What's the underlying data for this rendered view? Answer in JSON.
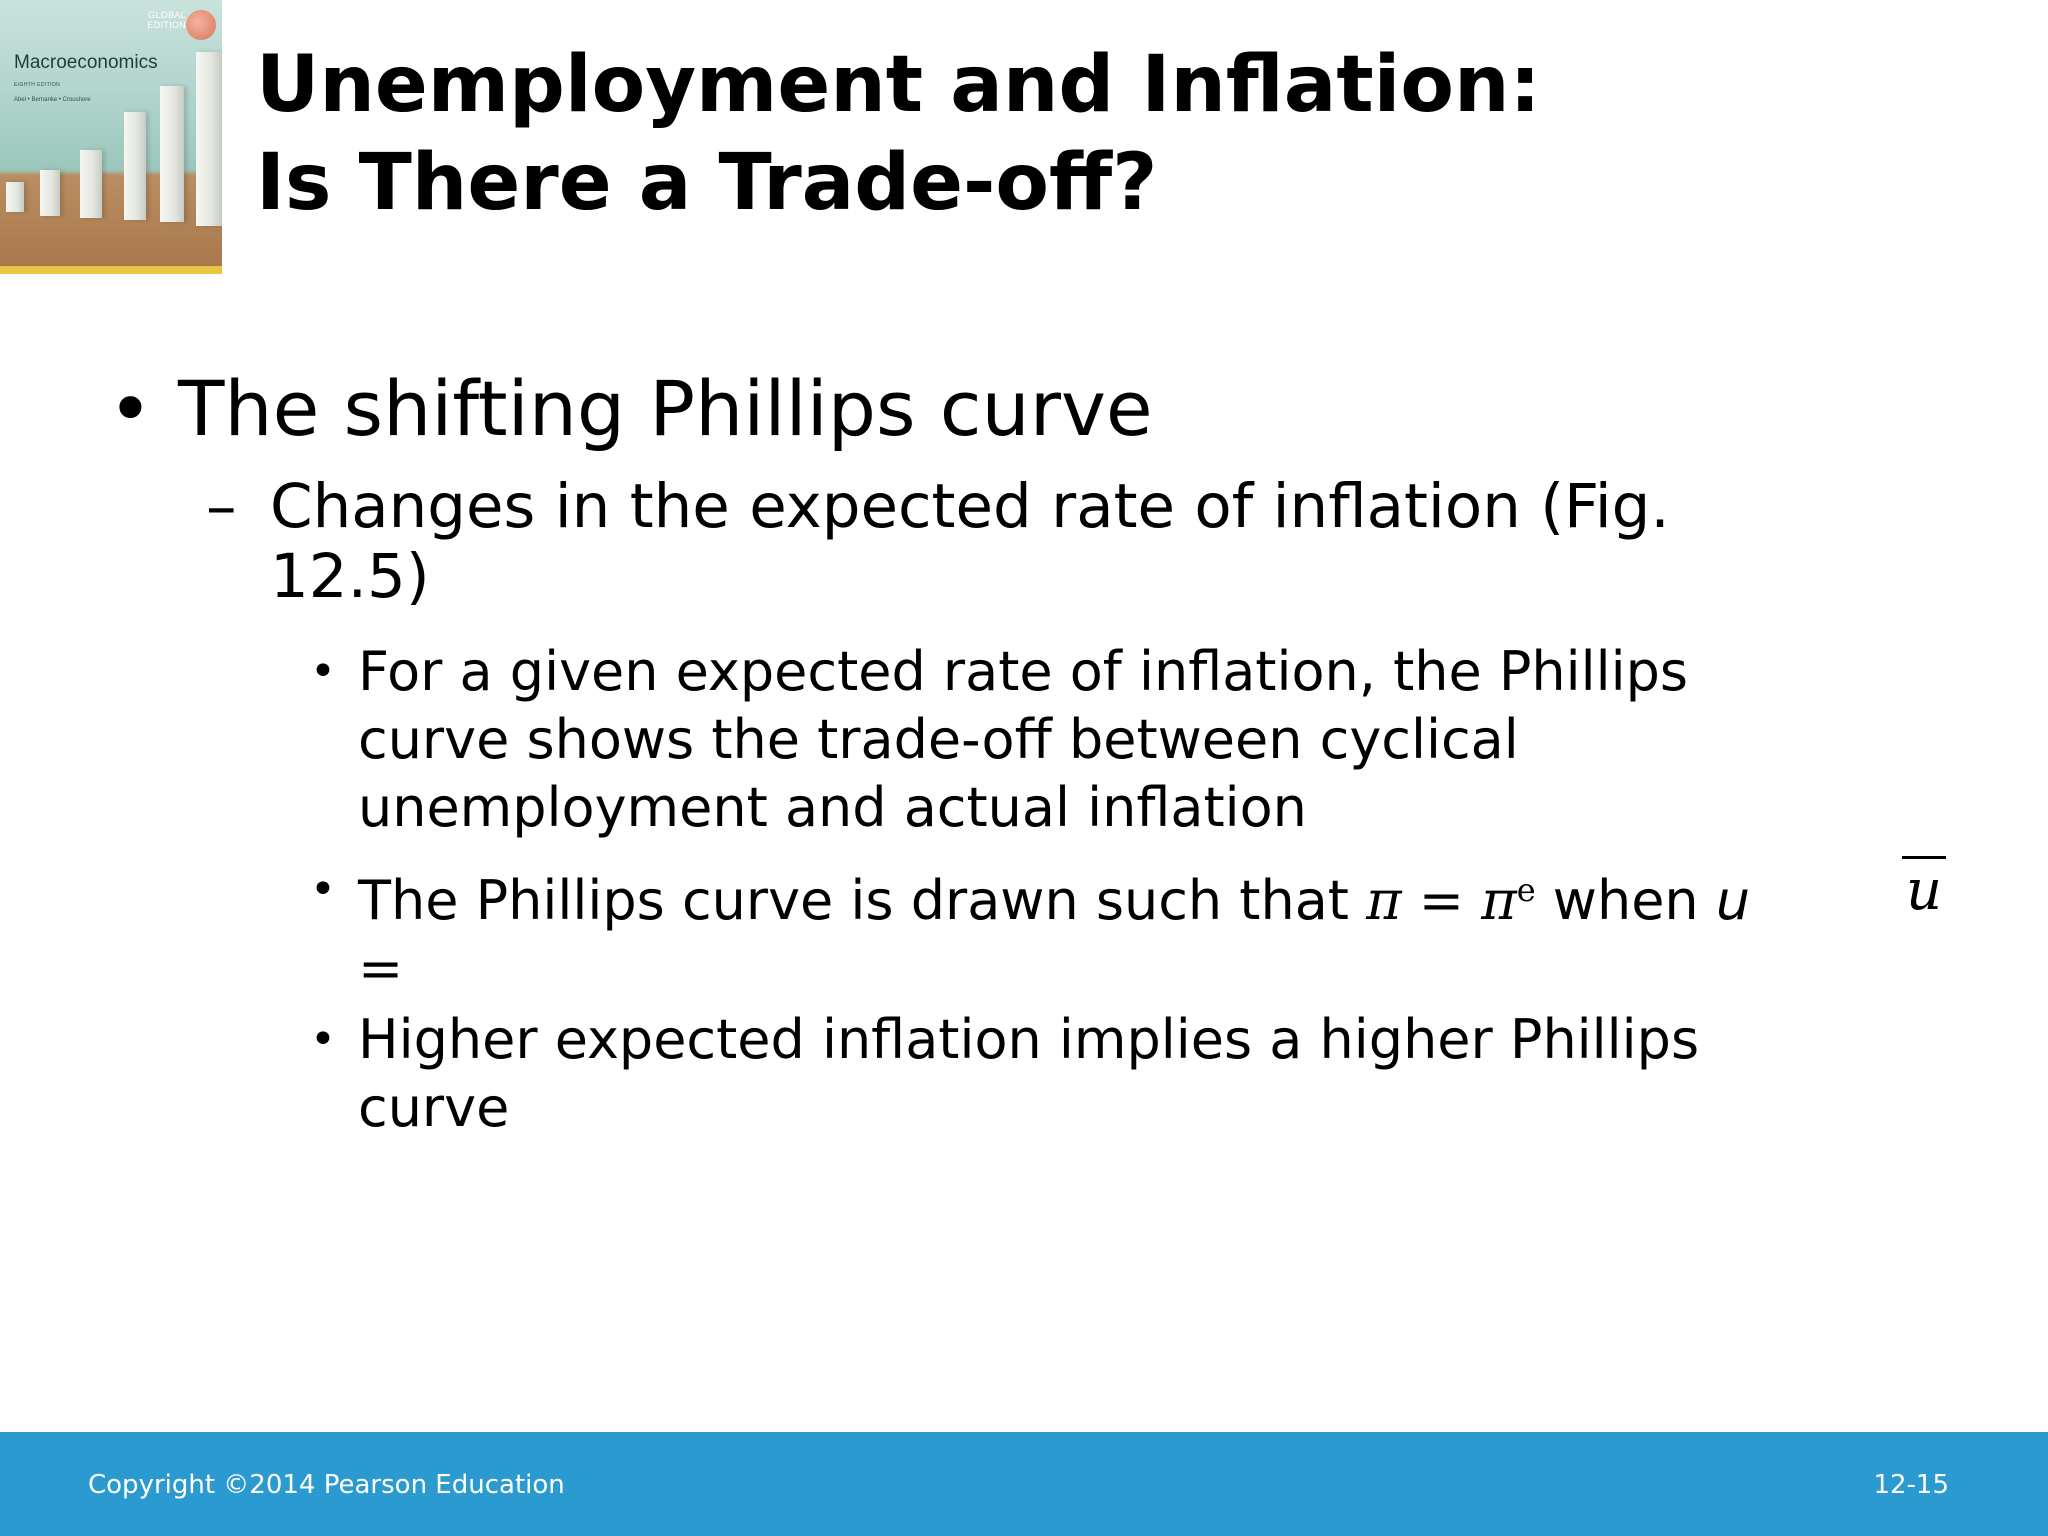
{
  "cover": {
    "badge_text": "GLOBAL\nEDITION",
    "book_title": "Macroeconomics",
    "edition": "EIGHTH EDITION",
    "authors": "Abel • Bernanke • Croushore"
  },
  "title": {
    "line1": "Unemployment and Inflation:",
    "line2": "Is There a Trade-off?"
  },
  "content": {
    "level1_marker": "•",
    "level1": "The shifting Phillips curve",
    "level2_marker": "–",
    "level2": "Changes in the expected rate of inflation (Fig. 12.5)",
    "level3_marker": "•",
    "bullets": [
      {
        "text": "For a given expected rate of inflation, the Phillips curve shows the trade-off between cyclical unemployment and actual inflation"
      },
      {
        "text_before": "The Phillips curve is drawn such that ",
        "pi": "π",
        "equals": " = ",
        "pi_e": "π",
        "sup_e": "e",
        "text_when": " when ",
        "u": "u",
        "eq_wrap": "=",
        "ubar": "u"
      },
      {
        "text": "Higher expected inflation implies a higher Phillips curve"
      }
    ]
  },
  "footer": {
    "copyright": "Copyright ©2014 Pearson Education",
    "page_number": "12-15"
  },
  "colors": {
    "footer_bar": "#2b9ad0",
    "text": "#000000",
    "footer_text": "#ffffff"
  }
}
